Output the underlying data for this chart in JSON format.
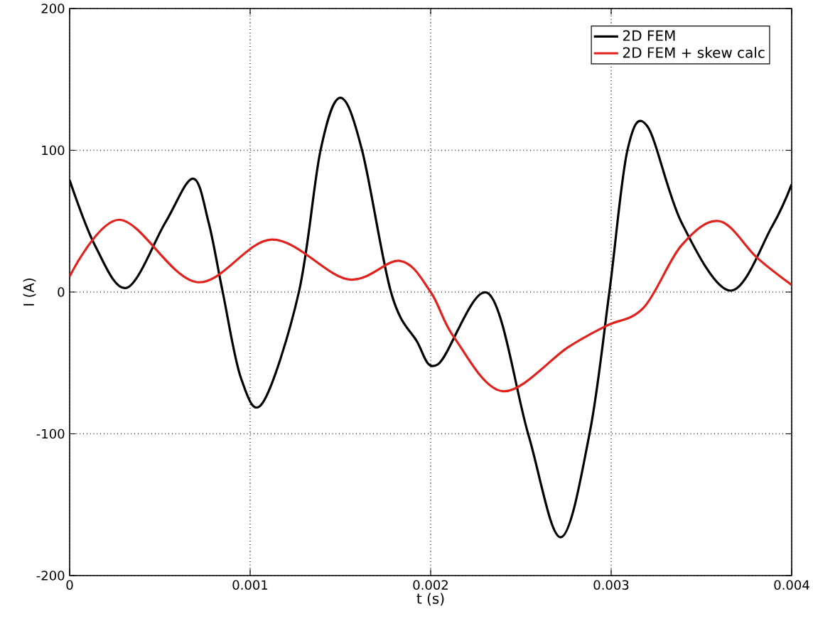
{
  "chart_data": {
    "type": "line",
    "xlabel": "t (s)",
    "ylabel": "I (A)",
    "xlim": [
      0,
      0.004
    ],
    "ylim": [
      -200,
      200
    ],
    "xticks": [
      0,
      0.001,
      0.002,
      0.003,
      0.004
    ],
    "yticks": [
      -200,
      -100,
      0,
      100,
      200
    ],
    "grid": true,
    "legend": "top right",
    "line_style": "solid",
    "series": [
      {
        "name": "2D FEM",
        "color": "#000000",
        "x": [
          0,
          0.00014,
          0.000317,
          0.00053,
          0.000683,
          0.00077,
          0.000848,
          0.00095,
          0.00107,
          0.00127,
          0.00139,
          0.0015,
          0.00162,
          0.00178,
          0.00192,
          0.00204,
          0.00232,
          0.00254,
          0.00272,
          0.00288,
          0.00299,
          0.00309,
          0.0032,
          0.00339,
          0.00366,
          0.00389,
          0.004
        ],
        "values": [
          79,
          33,
          3,
          49,
          80,
          49,
          0,
          -61,
          -78,
          0,
          100,
          137,
          100,
          0,
          -34,
          -51,
          -1,
          -100,
          -173,
          -100,
          0,
          100,
          117,
          49,
          1,
          46,
          76
        ]
      },
      {
        "name": "2D FEM + skew calc",
        "color": "#e3211c",
        "x": [
          0,
          0.000278,
          0.000703,
          0.00112,
          0.00154,
          0.00183,
          0.002,
          0.00213,
          0.0024,
          0.00276,
          0.00297,
          0.00318,
          0.00339,
          0.0036,
          0.00381,
          0.004
        ],
        "values": [
          11,
          51,
          7,
          37,
          9,
          22,
          0,
          -32,
          -70,
          -39,
          -24,
          -11,
          33,
          50,
          24,
          5
        ]
      }
    ]
  }
}
